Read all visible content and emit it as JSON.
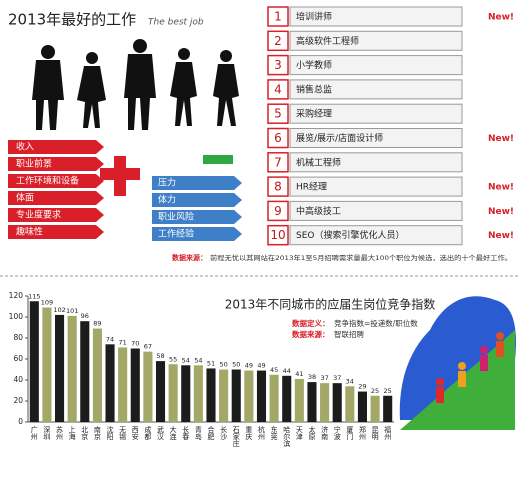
{
  "header": {
    "title": "2013年最好的工作",
    "subtitle": "The best job"
  },
  "factors_red": [
    "收入",
    "职业前景",
    "工作环境和设备",
    "体面",
    "专业度要求",
    "趣味性"
  ],
  "factors_blue": [
    "压力",
    "体力",
    "职业风险",
    "工作经验"
  ],
  "jobs": [
    {
      "rank": 1,
      "title": "培训讲师",
      "new": "New!"
    },
    {
      "rank": 2,
      "title": "高级软件工程师"
    },
    {
      "rank": 3,
      "title": "小学教师"
    },
    {
      "rank": 4,
      "title": "销售总监"
    },
    {
      "rank": 5,
      "title": "采购经理"
    },
    {
      "rank": 6,
      "title": "展览/展示/店面设计师",
      "new": "New!"
    },
    {
      "rank": 7,
      "title": "机械工程师"
    },
    {
      "rank": 8,
      "title": "HR经理",
      "new": "New!"
    },
    {
      "rank": 9,
      "title": "中高级技工",
      "new": "New!"
    },
    {
      "rank": 10,
      "title": "SEO（搜索引擎优化人员）",
      "new": "New!"
    }
  ],
  "source_note": {
    "label": "数据来源：",
    "text": "前程无忧以其网站在2013年1至5月招聘需求量最大100个职位为候选，选出的十个最好工作。"
  },
  "chart_data": {
    "type": "bar",
    "title": "2013年不同城市的应届生岗位竞争指数",
    "annotations": [
      {
        "label": "数据定义：",
        "text": "竞争指数=投递数/职位数"
      },
      {
        "label": "数据来源：",
        "text": "智联招聘"
      }
    ],
    "categories": [
      "广州",
      "深圳",
      "苏州",
      "上海",
      "北京",
      "南京",
      "沈阳",
      "无锡",
      "西安",
      "成都",
      "武汉",
      "大连",
      "长春",
      "青岛",
      "合肥",
      "长沙",
      "石家庄",
      "重庆",
      "杭州",
      "东莞",
      "哈尔滨",
      "天津",
      "太原",
      "济南",
      "宁波",
      "厦门",
      "郑州",
      "昆明",
      "福州"
    ],
    "values": [
      115,
      109,
      102,
      101,
      96,
      89,
      74,
      71,
      70,
      67,
      58,
      55,
      54,
      54,
      51,
      50,
      50,
      49,
      49,
      45,
      44,
      41,
      38,
      37,
      37,
      34,
      29,
      25,
      25
    ],
    "colors": [
      "#1c1c1c",
      "#a3a867"
    ],
    "ylim": [
      0,
      120
    ],
    "yticks": [
      0,
      20,
      40,
      60,
      80,
      100,
      120
    ]
  }
}
